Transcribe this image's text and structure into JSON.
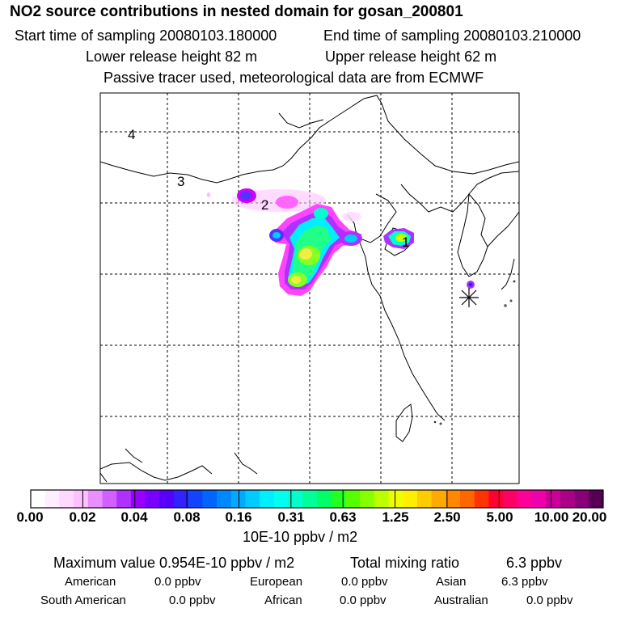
{
  "header": {
    "title": "NO2 source contributions in nested domain for gosan_200801",
    "start_time": "Start time of sampling 20080103.180000",
    "end_time": "End time of sampling 20080103.210000",
    "lower_release": "Lower release height   82 m",
    "upper_release": "Upper release height   62 m",
    "note": "Passive tracer used, meteorological data are from ECMWF"
  },
  "map": {
    "day_labels": [
      "4",
      "3",
      "2",
      "1"
    ],
    "plume_colors": [
      "#ff44ff",
      "#cc00ff",
      "#8800ff",
      "#00ffcc",
      "#44ff44",
      "#ccff00",
      "#eeee44"
    ]
  },
  "colorbar": {
    "colors": [
      "#ffffff",
      "#ffeeff",
      "#ffd8ff",
      "#ffc0ff",
      "#e890ff",
      "#d060ff",
      "#b030ff",
      "#9900ff",
      "#7700ff",
      "#5500ff",
      "#3322ff",
      "#1144ff",
      "#0066ff",
      "#0088ff",
      "#00aaff",
      "#00ccff",
      "#00eeff",
      "#00ffee",
      "#00ffcc",
      "#00ff99",
      "#00ff66",
      "#22ff22",
      "#55ff00",
      "#88ff00",
      "#bbff00",
      "#eeff00",
      "#ffee00",
      "#ffcc00",
      "#ffaa00",
      "#ff8800",
      "#ff6600",
      "#ff3300",
      "#ff0033",
      "#ff0066",
      "#ff0099",
      "#ee00aa",
      "#cc0099",
      "#aa0088",
      "#880077",
      "#550055"
    ],
    "ticks": [
      "0.00",
      "0.02",
      "0.04",
      "0.08",
      "0.16",
      "0.31",
      "0.63",
      "1.25",
      "2.50",
      "5.00",
      "10.00",
      "20.00"
    ],
    "units": "10E-10 ppbv / m2"
  },
  "summary": {
    "max_label": "Maximum value  0.954E-10 ppbv / m2",
    "total_label": "Total mixing ratio",
    "total_value": "6.3 ppbv",
    "regions": [
      {
        "name": "American",
        "value": "0.0 ppbv"
      },
      {
        "name": "European",
        "value": "0.0 ppbv"
      },
      {
        "name": "Asian",
        "value": "6.3 ppbv"
      },
      {
        "name": "South American",
        "value": "0.0 ppbv"
      },
      {
        "name": "African",
        "value": "0.0 ppbv"
      },
      {
        "name": "Australian",
        "value": "0.0 ppbv"
      }
    ]
  }
}
